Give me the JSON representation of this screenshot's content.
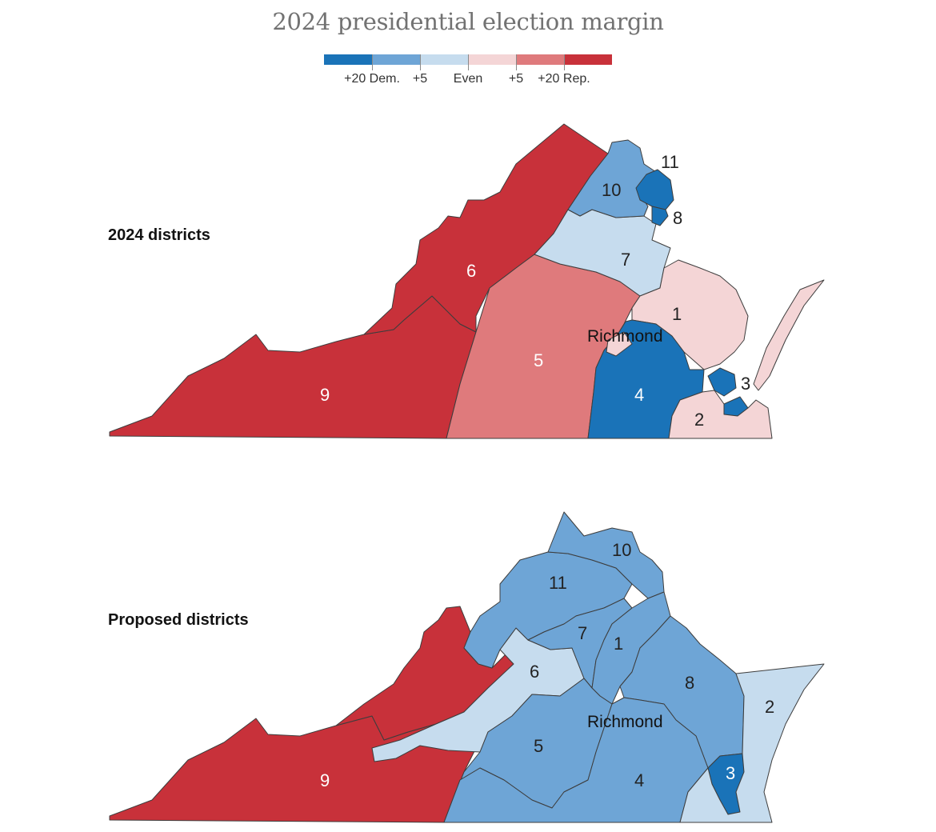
{
  "title": "2024 presidential election margin",
  "legend": {
    "labels": [
      "+20 Dem.",
      "+5",
      "Even",
      "+5",
      "+20 Rep."
    ],
    "colors": [
      "#1a73b8",
      "#6ea5d6",
      "#c6dcee",
      "#f4d5d6",
      "#df7a7c",
      "#c8313a"
    ]
  },
  "maps": {
    "current": {
      "label": "2024 districts",
      "districts": [
        {
          "num": "1",
          "lean": "R +0-5"
        },
        {
          "num": "2",
          "lean": "R +0-5"
        },
        {
          "num": "3",
          "lean": "D +20"
        },
        {
          "num": "4",
          "lean": "D +20"
        },
        {
          "num": "5",
          "lean": "R +5-20"
        },
        {
          "num": "6",
          "lean": "R +20"
        },
        {
          "num": "7",
          "lean": "D +0-5"
        },
        {
          "num": "8",
          "lean": "D +20"
        },
        {
          "num": "9",
          "lean": "R +20"
        },
        {
          "num": "10",
          "lean": "D +5-20"
        },
        {
          "num": "11",
          "lean": "D +20"
        }
      ],
      "city": "Richmond"
    },
    "proposed": {
      "label": "Proposed districts",
      "districts": [
        {
          "num": "1",
          "lean": "D +5-20"
        },
        {
          "num": "2",
          "lean": "D +0-5"
        },
        {
          "num": "3",
          "lean": "D +20"
        },
        {
          "num": "4",
          "lean": "D +5-20"
        },
        {
          "num": "5",
          "lean": "D +5-20"
        },
        {
          "num": "6",
          "lean": "D +0-5"
        },
        {
          "num": "7",
          "lean": "D +5-20"
        },
        {
          "num": "8",
          "lean": "D +5-20"
        },
        {
          "num": "9",
          "lean": "R +20"
        },
        {
          "num": "10",
          "lean": "D +5-20"
        },
        {
          "num": "11",
          "lean": "D +5-20"
        }
      ],
      "city": "Richmond"
    }
  }
}
